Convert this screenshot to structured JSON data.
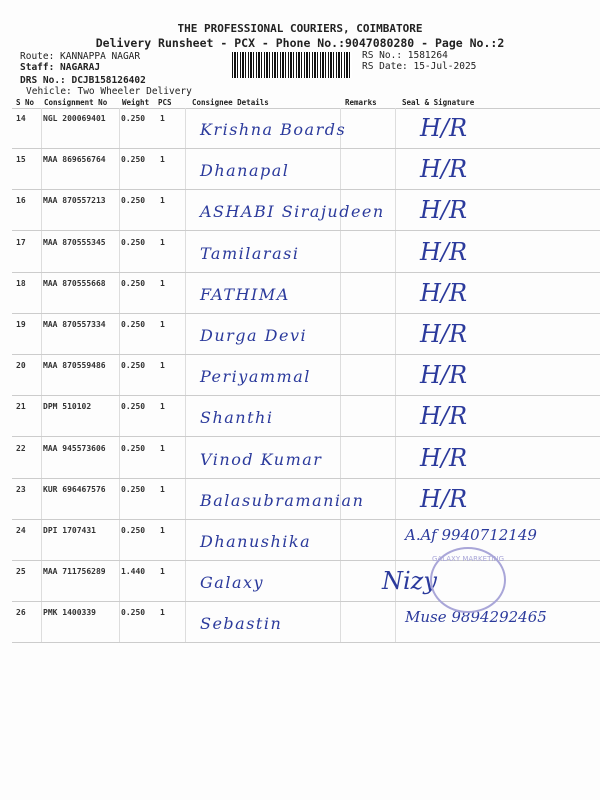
{
  "header": {
    "company": "THE PROFESSIONAL COURIERS, COIMBATORE",
    "subtitle": "Delivery Runsheet - PCX - Phone No.:9047080280 - Page No.:2",
    "route": "Route: KANNAPPA NAGAR",
    "staff": "Staff: NAGARAJ",
    "drs": "DRS No.: DCJB158126402",
    "vehicle": "Vehicle: Two Wheeler Delivery",
    "rs_no": "RS No.: 1581264",
    "rs_date": "RS Date: 15-Jul-2025"
  },
  "columns": [
    "S No",
    "Consignment No",
    "Weight",
    "PCS",
    "Consignee Details",
    "Remarks",
    "Seal & Signature"
  ],
  "rows": [
    {
      "sno": "14",
      "cons": "NGL 200069401",
      "weight": "0.250",
      "pcs": "1",
      "name": "Krishna Boards",
      "sig": "H/R"
    },
    {
      "sno": "15",
      "cons": "MAA 869656764",
      "weight": "0.250",
      "pcs": "1",
      "name": "Dhanapal",
      "sig": "H/R"
    },
    {
      "sno": "16",
      "cons": "MAA 870557213",
      "weight": "0.250",
      "pcs": "1",
      "name": "ASHABI Sirajudeen",
      "sig": "H/R"
    },
    {
      "sno": "17",
      "cons": "MAA 870555345",
      "weight": "0.250",
      "pcs": "1",
      "name": "Tamilarasi",
      "sig": "H/R"
    },
    {
      "sno": "18",
      "cons": "MAA 870555668",
      "weight": "0.250",
      "pcs": "1",
      "name": "FATHIMA",
      "sig": "H/R"
    },
    {
      "sno": "19",
      "cons": "MAA 870557334",
      "weight": "0.250",
      "pcs": "1",
      "name": "Durga Devi",
      "sig": "H/R"
    },
    {
      "sno": "20",
      "cons": "MAA 870559486",
      "weight": "0.250",
      "pcs": "1",
      "name": "Periyammal",
      "sig": "H/R"
    },
    {
      "sno": "21",
      "cons": "DPM 510102",
      "weight": "0.250",
      "pcs": "1",
      "name": "Shanthi",
      "sig": "H/R"
    },
    {
      "sno": "22",
      "cons": "MAA 945573606",
      "weight": "0.250",
      "pcs": "1",
      "name": "Vinod Kumar",
      "sig": "H/R"
    },
    {
      "sno": "23",
      "cons": "KUR 696467576",
      "weight": "0.250",
      "pcs": "1",
      "name": "Balasubramanian",
      "sig": "H/R"
    },
    {
      "sno": "24",
      "cons": "DPI 1707431",
      "weight": "0.250",
      "pcs": "1",
      "name": "Dhanushika",
      "sig": "A.Af 9940712149"
    },
    {
      "sno": "25",
      "cons": "MAA 711756289",
      "weight": "1.440",
      "pcs": "1",
      "name": "Galaxy",
      "sig": "Nizy"
    },
    {
      "sno": "26",
      "cons": "PMK 1400339",
      "weight": "0.250",
      "pcs": "1",
      "name": "Sebastin",
      "sig": "Muse 9894292465"
    }
  ],
  "stamp": "GALAXY MARKETING",
  "colors": {
    "ink": "#2b3a9c",
    "stamp": "#a9a6d8"
  }
}
